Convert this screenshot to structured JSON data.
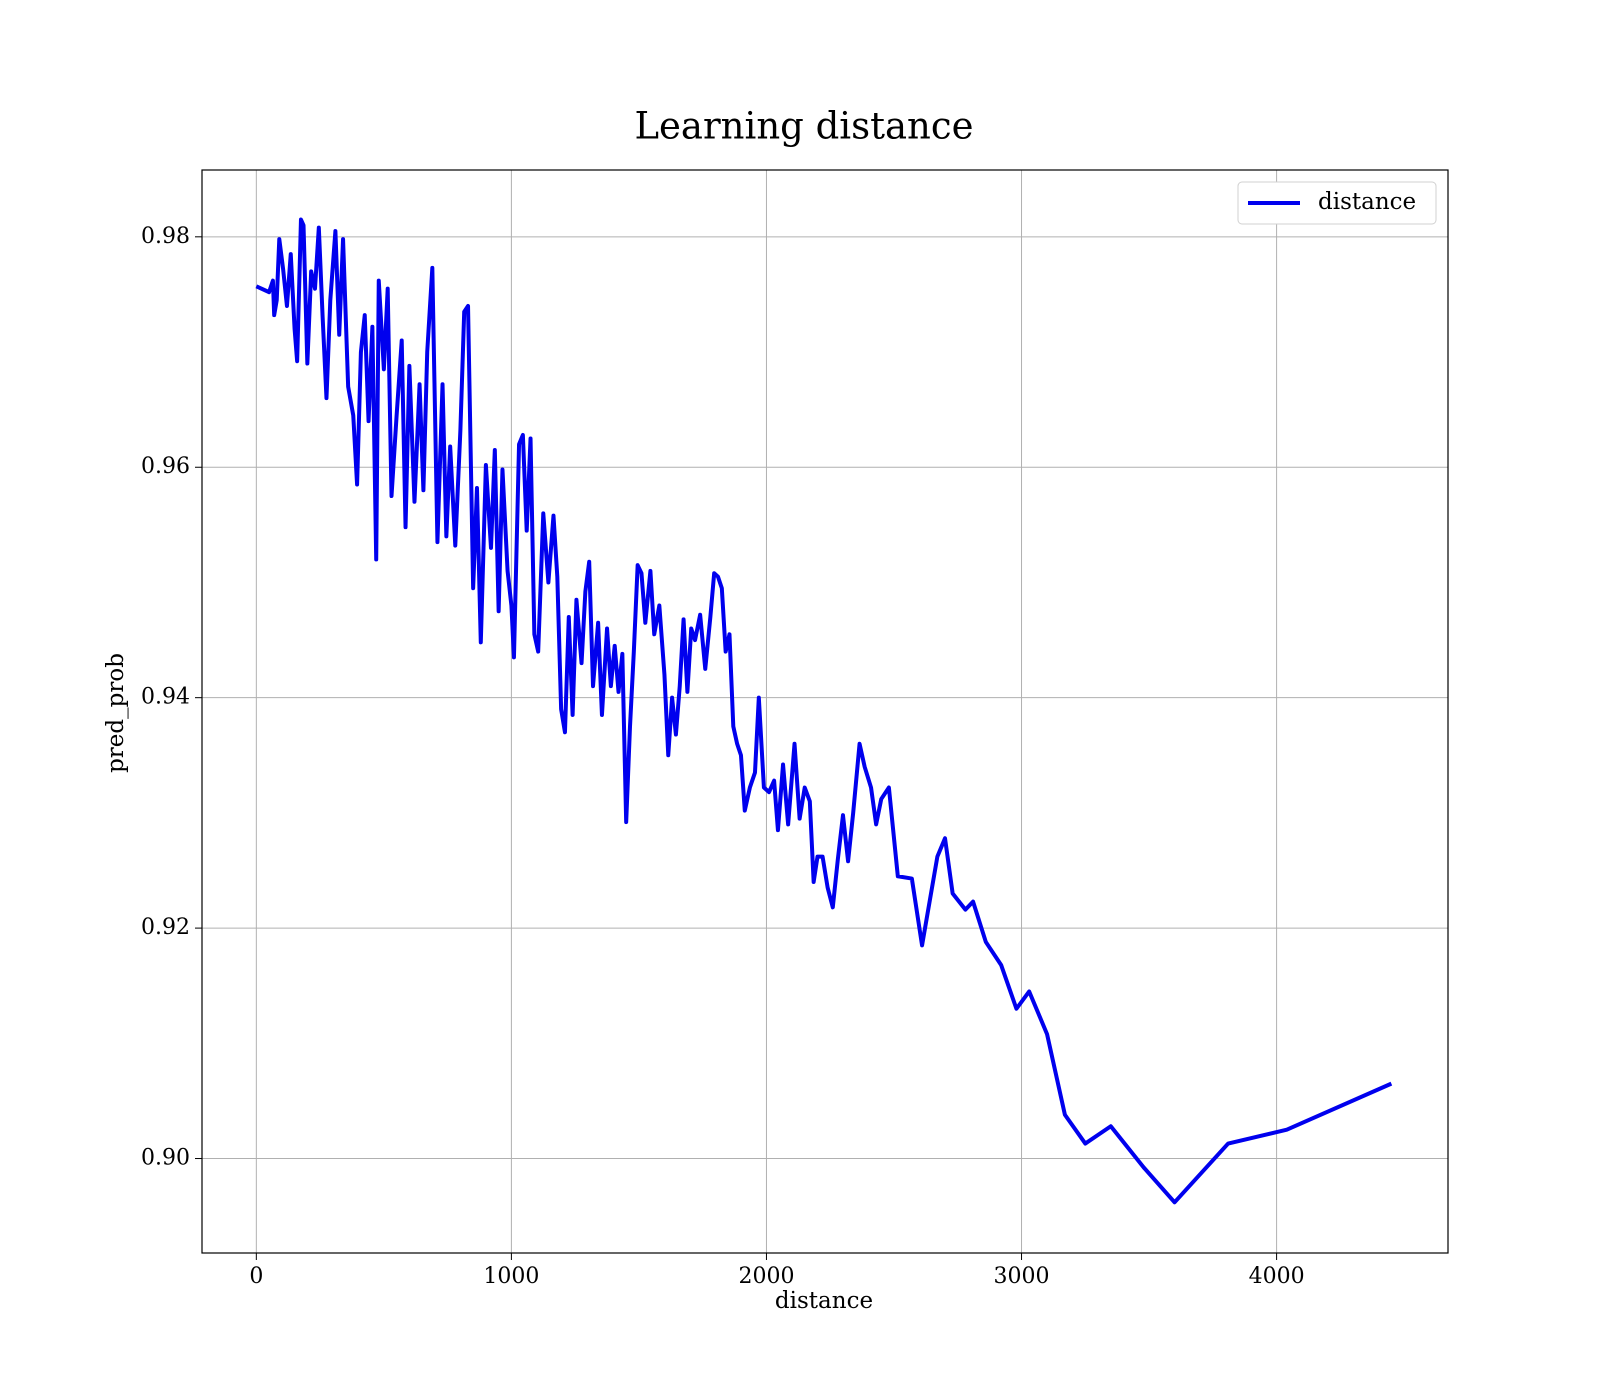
{
  "chart_data": {
    "type": "line",
    "title": "Learning distance",
    "xlabel": "distance",
    "ylabel": "pred_prob",
    "x": [
      0,
      50,
      65,
      70,
      80,
      90,
      105,
      120,
      135,
      150,
      160,
      175,
      185,
      200,
      215,
      230,
      245,
      260,
      275,
      290,
      310,
      325,
      340,
      360,
      380,
      395,
      410,
      425,
      440,
      455,
      470,
      480,
      500,
      515,
      530,
      550,
      570,
      585,
      600,
      620,
      640,
      655,
      670,
      690,
      710,
      730,
      745,
      760,
      780,
      800,
      815,
      830,
      850,
      865,
      880,
      900,
      920,
      935,
      950,
      965,
      985,
      1000,
      1010,
      1030,
      1045,
      1060,
      1075,
      1090,
      1105,
      1125,
      1145,
      1165,
      1180,
      1195,
      1210,
      1225,
      1240,
      1255,
      1275,
      1290,
      1305,
      1320,
      1340,
      1355,
      1375,
      1390,
      1405,
      1420,
      1435,
      1450,
      1465,
      1480,
      1495,
      1510,
      1525,
      1545,
      1560,
      1580,
      1600,
      1615,
      1630,
      1645,
      1660,
      1675,
      1690,
      1705,
      1720,
      1740,
      1760,
      1780,
      1795,
      1810,
      1825,
      1840,
      1855,
      1870,
      1885,
      1900,
      1915,
      1935,
      1955,
      1970,
      1990,
      2010,
      2030,
      2045,
      2065,
      2085,
      2110,
      2130,
      2150,
      2170,
      2185,
      2200,
      2220,
      2240,
      2260,
      2280,
      2300,
      2320,
      2340,
      2365,
      2385,
      2410,
      2430,
      2450,
      2480,
      2515,
      2570,
      2610,
      2670,
      2700,
      2730,
      2780,
      2810,
      2860,
      2920,
      2980,
      3030,
      3100,
      3170,
      3250,
      3350,
      3480,
      3600,
      3810,
      4040,
      4450
    ],
    "series": [
      {
        "name": "distance",
        "color": "#0000ee",
        "values": [
          0.9757,
          0.9752,
          0.9762,
          0.9732,
          0.9745,
          0.9798,
          0.9772,
          0.974,
          0.9785,
          0.972,
          0.9692,
          0.9815,
          0.981,
          0.969,
          0.977,
          0.9755,
          0.9808,
          0.973,
          0.966,
          0.9745,
          0.9805,
          0.9715,
          0.9798,
          0.967,
          0.9645,
          0.9585,
          0.97,
          0.9732,
          0.964,
          0.9722,
          0.952,
          0.9762,
          0.9685,
          0.9755,
          0.9575,
          0.9645,
          0.971,
          0.9548,
          0.9688,
          0.957,
          0.9672,
          0.958,
          0.97,
          0.9773,
          0.9535,
          0.9672,
          0.954,
          0.9618,
          0.9532,
          0.9632,
          0.9735,
          0.974,
          0.9495,
          0.9582,
          0.9448,
          0.9602,
          0.953,
          0.9615,
          0.9475,
          0.9598,
          0.951,
          0.948,
          0.9435,
          0.962,
          0.9628,
          0.9545,
          0.9625,
          0.9455,
          0.944,
          0.956,
          0.95,
          0.9558,
          0.9505,
          0.939,
          0.937,
          0.947,
          0.9385,
          0.9485,
          0.943,
          0.9492,
          0.9518,
          0.941,
          0.9465,
          0.9385,
          0.946,
          0.941,
          0.9445,
          0.9405,
          0.9438,
          0.9292,
          0.9375,
          0.944,
          0.9515,
          0.9508,
          0.9465,
          0.951,
          0.9455,
          0.948,
          0.942,
          0.935,
          0.94,
          0.9368,
          0.941,
          0.9468,
          0.9405,
          0.946,
          0.945,
          0.9472,
          0.9425,
          0.947,
          0.9508,
          0.9505,
          0.9495,
          0.944,
          0.9455,
          0.9375,
          0.936,
          0.935,
          0.9302,
          0.9322,
          0.9335,
          0.94,
          0.9322,
          0.9318,
          0.9328,
          0.9285,
          0.9342,
          0.929,
          0.936,
          0.9295,
          0.9322,
          0.931,
          0.924,
          0.9262,
          0.9262,
          0.9235,
          0.9218,
          0.926,
          0.9298,
          0.9258,
          0.93,
          0.936,
          0.934,
          0.9322,
          0.929,
          0.9312,
          0.9322,
          0.9245,
          0.9243,
          0.9185,
          0.9262,
          0.9278,
          0.923,
          0.9216,
          0.9223,
          0.9188,
          0.9168,
          0.913,
          0.9145,
          0.9108,
          0.9038,
          0.9013,
          0.9028,
          0.8992,
          0.8962,
          0.9013,
          0.9025,
          0.9065
        ]
      }
    ],
    "xlim": [
      -213,
      4672
    ],
    "xticks": [
      0,
      1000,
      2000,
      3000,
      4000
    ],
    "ylim": [
      0.8918,
      0.9858
    ],
    "yticks": [
      {
        "value": 0.9,
        "label": "0.90"
      },
      0.92,
      0.94,
      0.96,
      0.98
    ],
    "grid": true,
    "legend": "upper right"
  }
}
